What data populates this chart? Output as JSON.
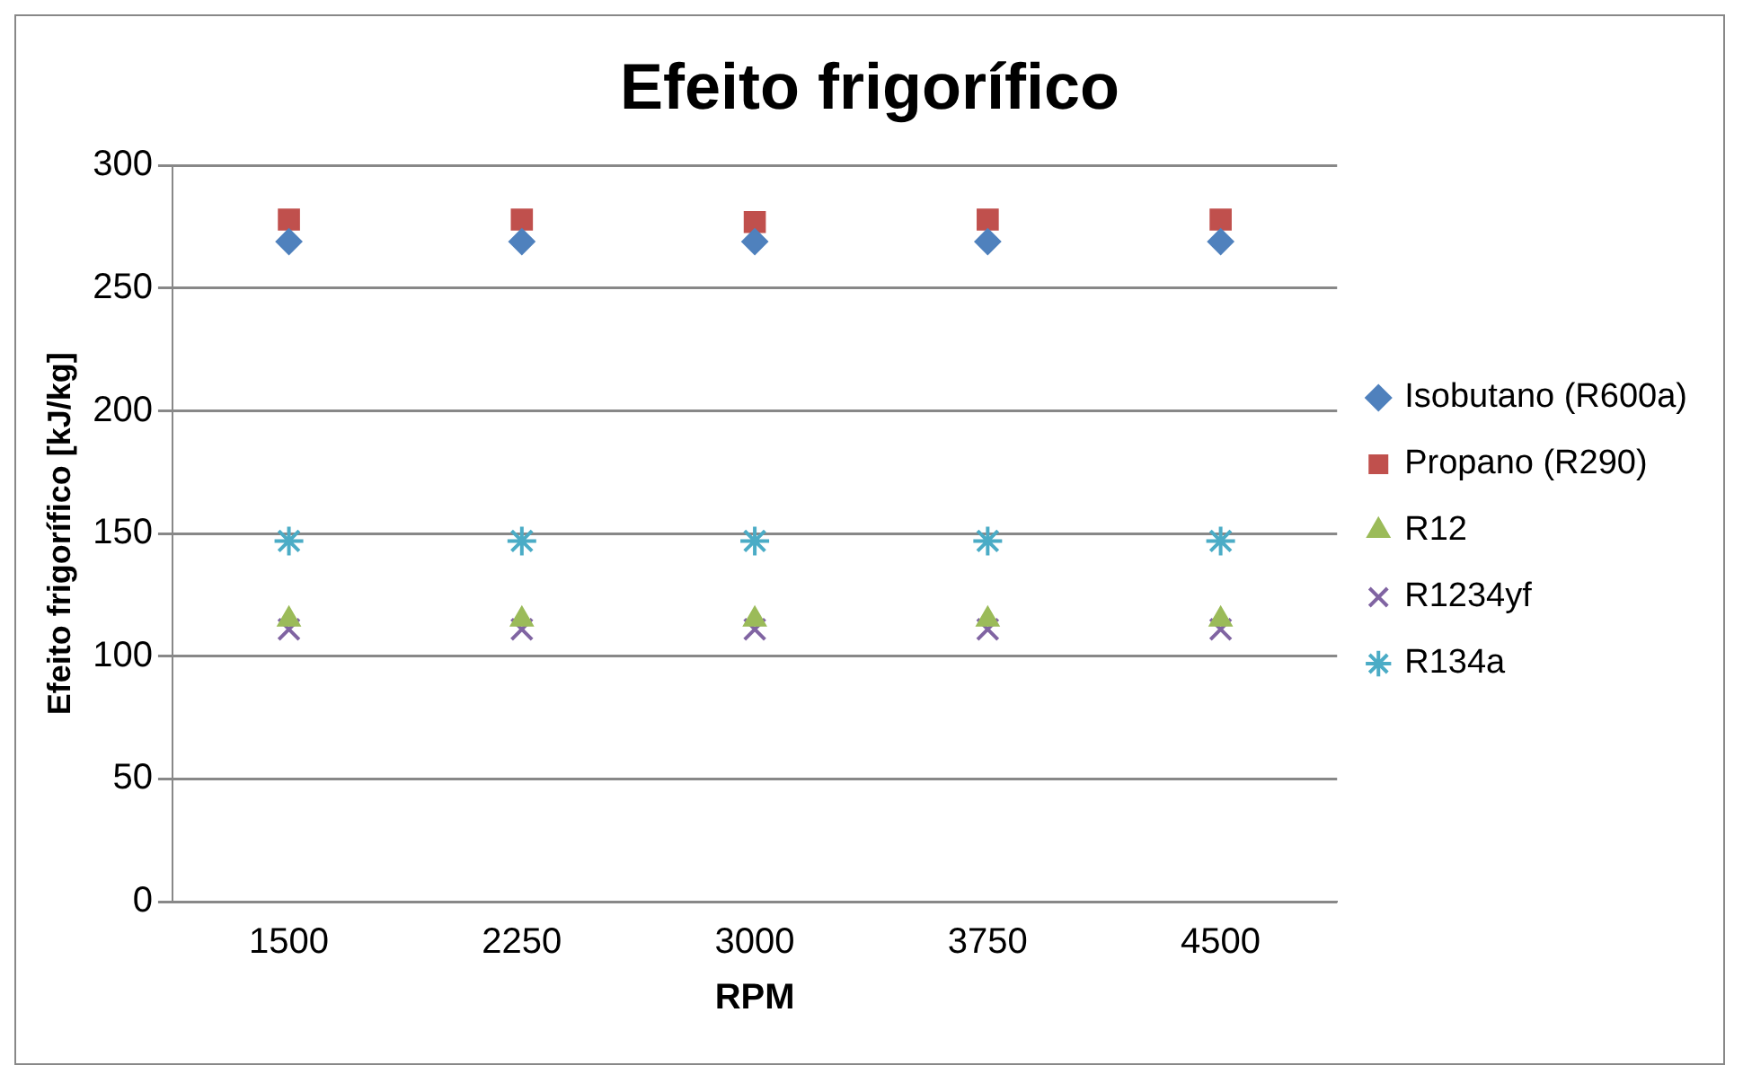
{
  "chart_data": {
    "type": "scatter",
    "title": "Efeito frigorífico",
    "xlabel": "RPM",
    "ylabel": "Efeito frigorífico [kJ/kg]",
    "categories": [
      "1500",
      "2250",
      "3000",
      "3750",
      "4500"
    ],
    "series": [
      {
        "name": "Isobutano (R600a)",
        "color": "#4f81bd",
        "marker": "diamond",
        "values": [
          269,
          269,
          269,
          269,
          269
        ]
      },
      {
        "name": "Propano (R290)",
        "color": "#c0504d",
        "marker": "square",
        "values": [
          278,
          278,
          277,
          278,
          278
        ]
      },
      {
        "name": "R12",
        "color": "#9bbb59",
        "marker": "triangle",
        "values": [
          115,
          115,
          115,
          115,
          115
        ]
      },
      {
        "name": "R1234yf",
        "color": "#8064a2",
        "marker": "cross",
        "values": [
          111,
          111,
          111,
          111,
          111
        ]
      },
      {
        "name": "R134a",
        "color": "#4bacc6",
        "values": [
          147,
          147,
          147,
          147,
          147
        ]
      }
    ],
    "ylim": [
      0,
      300
    ],
    "yticks": [
      0,
      50,
      100,
      150,
      200,
      250,
      300
    ],
    "grid": "y",
    "legend": "right"
  }
}
